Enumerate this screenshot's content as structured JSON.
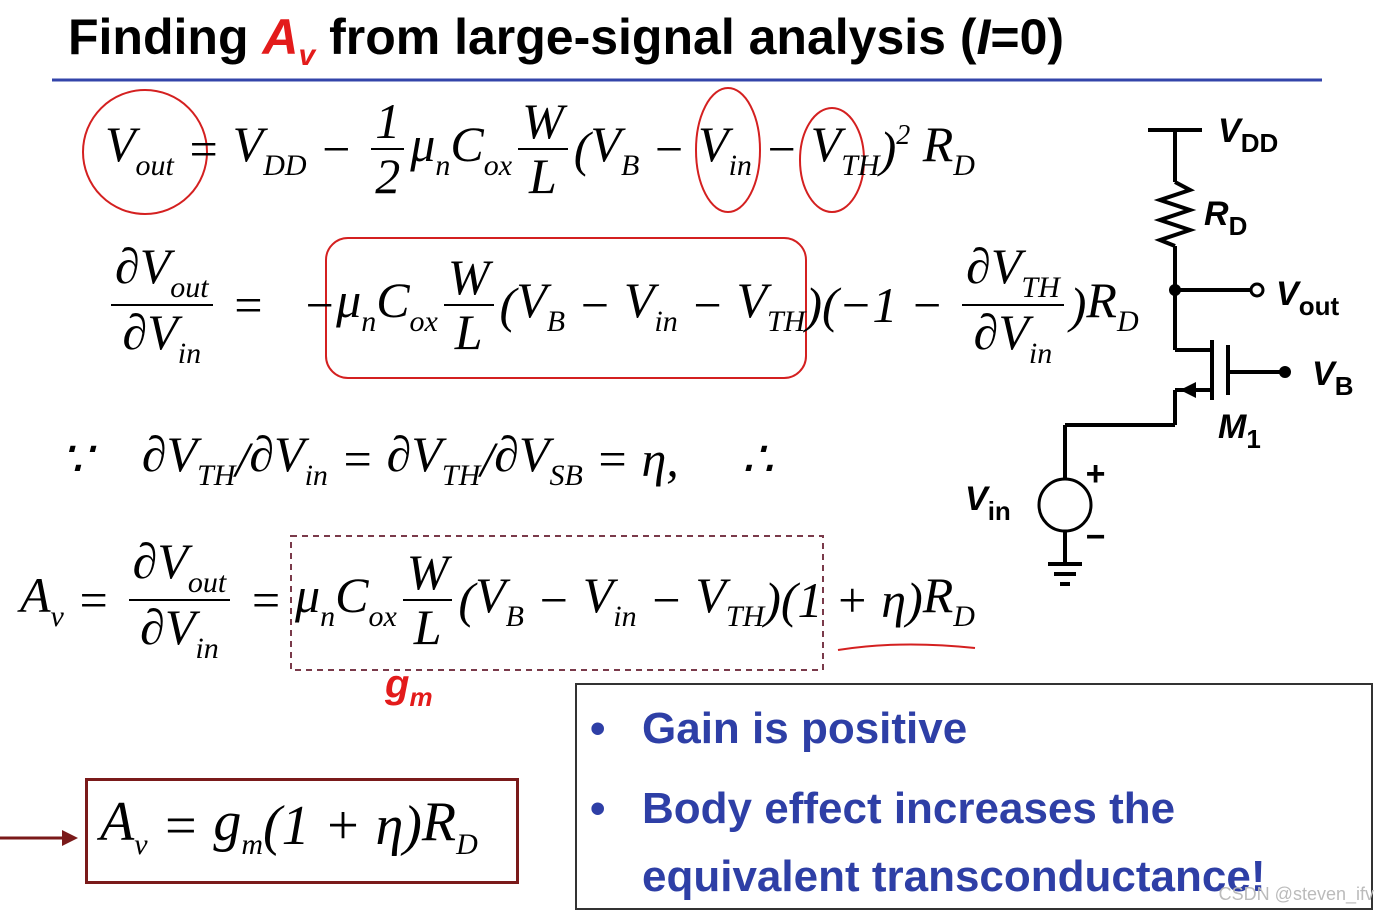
{
  "title": {
    "text1": "Finding ",
    "symbol": {
      "b": "A",
      "s": "v"
    },
    "text2": " from large-signal analysis (",
    "italic": "I",
    "text3": "=0)"
  },
  "equations": [
    [
      {
        "b": "V",
        "s": "out"
      },
      " = ",
      {
        "b": "V",
        "s": "DD"
      },
      " − ",
      {
        "num": [
          "1"
        ],
        "den": [
          "2"
        ]
      },
      {
        "b": "μ",
        "s": "n"
      },
      {
        "b": "C",
        "s": "ox"
      },
      {
        "num": [
          "W"
        ],
        "den": [
          "L"
        ]
      },
      "(",
      {
        "b": "V",
        "s": "B"
      },
      " − ",
      {
        "b": "V",
        "s": "in"
      },
      " − ",
      {
        "b": "V",
        "s": "TH"
      },
      {
        "b": ")",
        "p": "2"
      },
      {
        "b": " R",
        "s": "D"
      }
    ],
    [
      {
        "num": [
          {
            "b": "∂V",
            "s": "out"
          }
        ],
        "den": [
          {
            "b": "∂V",
            "s": "in"
          }
        ]
      },
      " =   −",
      {
        "b": "μ",
        "s": "n"
      },
      {
        "b": "C",
        "s": "ox"
      },
      {
        "num": [
          "W"
        ],
        "den": [
          "L"
        ]
      },
      "(",
      {
        "b": "V",
        "s": "B"
      },
      " − ",
      {
        "b": "V",
        "s": "in"
      },
      " − ",
      {
        "b": "V",
        "s": "TH"
      },
      ")(−1 − ",
      {
        "num": [
          {
            "b": "∂V",
            "s": "TH"
          }
        ],
        "den": [
          {
            "b": "∂V",
            "s": "in"
          }
        ]
      },
      ")",
      {
        "b": "R",
        "s": "D"
      }
    ],
    [
      "∵    ",
      {
        "b": "∂V",
        "s": "TH"
      },
      "/",
      {
        "b": "∂V",
        "s": "in"
      },
      " = ",
      {
        "b": "∂V",
        "s": "TH"
      },
      "/",
      {
        "b": "∂V",
        "s": "SB"
      },
      " = η,     ∴"
    ],
    [
      {
        "b": "A",
        "s": "v"
      },
      " = ",
      {
        "num": [
          {
            "b": "∂V",
            "s": "out"
          }
        ],
        "den": [
          {
            "b": "∂V",
            "s": "in"
          }
        ]
      },
      " = ",
      {
        "b": "μ",
        "s": "n"
      },
      {
        "b": "C",
        "s": "ox"
      },
      {
        "num": [
          "W"
        ],
        "den": [
          "L"
        ]
      },
      "(",
      {
        "b": "V",
        "s": "B"
      },
      " − ",
      {
        "b": "V",
        "s": "in"
      },
      " − ",
      {
        "b": "V",
        "s": "TH"
      },
      ")(1 + η)",
      {
        "b": "R",
        "s": "D"
      }
    ]
  ],
  "gm_label": {
    "b": "g",
    "s": "m"
  },
  "result": [
    {
      "b": "A",
      "s": "v"
    },
    " = ",
    {
      "b": "g",
      "s": "m"
    },
    "(1 + η)",
    {
      "b": "R",
      "s": "D"
    }
  ],
  "bullets": [
    "Gain is positive",
    "Body effect increases the equivalent transconductance!"
  ],
  "circuit": {
    "vdd": {
      "b": "V",
      "s": "DD"
    },
    "rd": {
      "b": "R",
      "s": "D"
    },
    "vout": {
      "b": "V",
      "s": "out"
    },
    "vb": {
      "b": "V",
      "s": "B"
    },
    "m1": {
      "b": "M",
      "s": "1"
    },
    "vin": {
      "b": "V",
      "s": "in"
    },
    "plus": "+",
    "minus": "−"
  },
  "watermark": "CSDN @steven_ifv"
}
